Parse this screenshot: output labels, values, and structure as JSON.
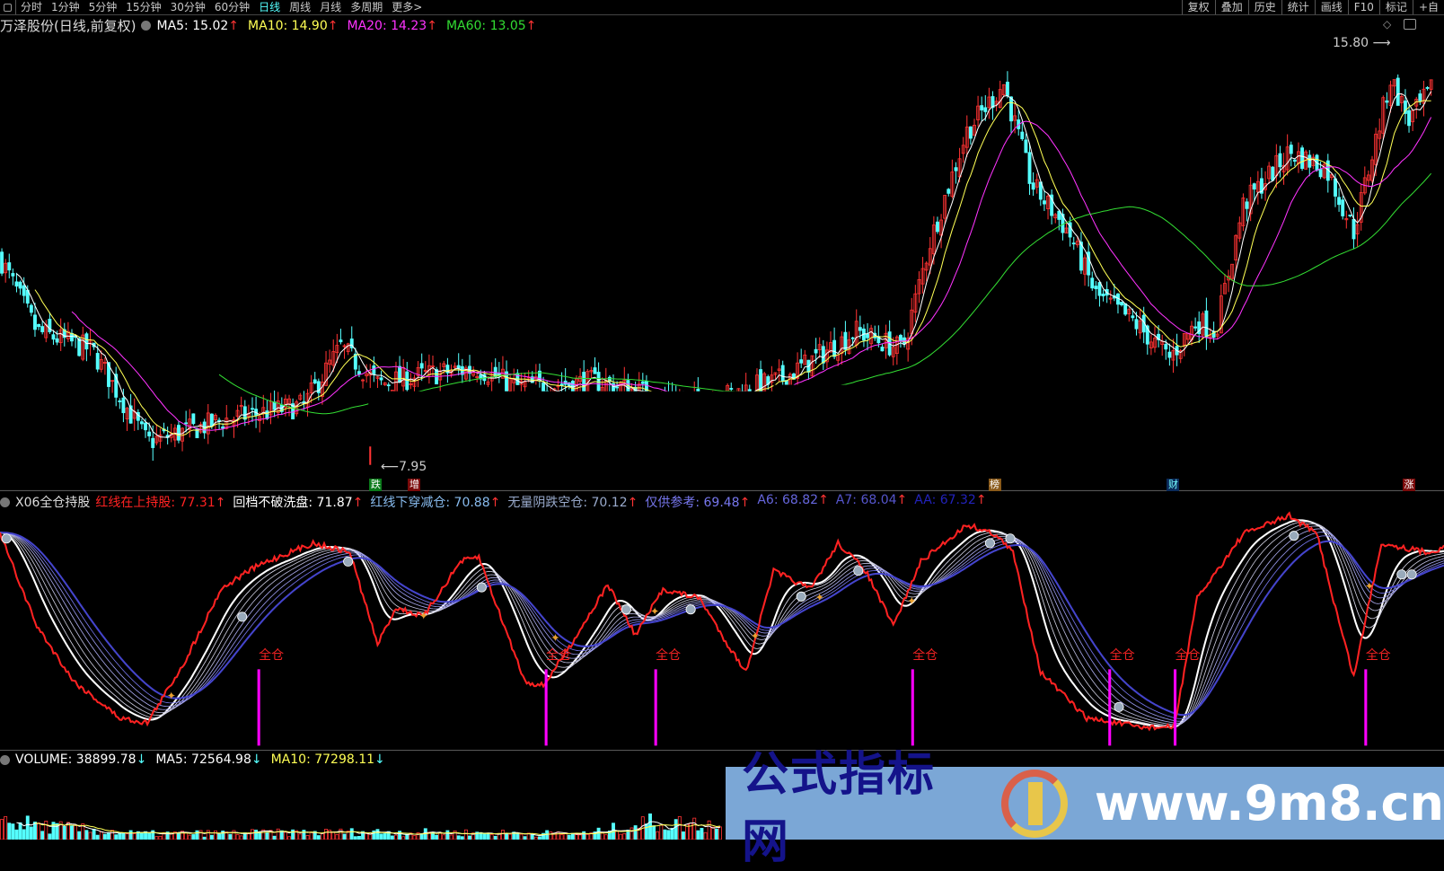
{
  "toolbar": {
    "periods": [
      "分时",
      "1分钟",
      "5分钟",
      "15分钟",
      "30分钟",
      "60分钟",
      "日线",
      "周线",
      "月线",
      "多周期",
      "更多>"
    ],
    "active_period": "日线",
    "right_items": [
      "复权",
      "叠加",
      "历史",
      "统计",
      "画线",
      "F10",
      "标记",
      "+自"
    ]
  },
  "main": {
    "title": "万泽股份(日线,前复权)",
    "ma": [
      {
        "label": "MA5: 15.02",
        "color": "#ffffff"
      },
      {
        "label": "MA10: 14.90",
        "color": "#ffff55"
      },
      {
        "label": "MA20: 14.23",
        "color": "#ff33ff"
      },
      {
        "label": "MA60: 13.05",
        "color": "#33dd33"
      }
    ],
    "arrow_up": "↑",
    "high_label": "15.80",
    "low_label": "7.95",
    "tags": [
      {
        "text": "跌",
        "bg": "#0a7a1a",
        "fg": "#ffffff"
      },
      {
        "text": "增",
        "bg": "#7a0a0a",
        "fg": "#ffffff"
      },
      {
        "text": "榜",
        "bg": "#8a5a1a",
        "fg": "#ffffff"
      },
      {
        "text": "财",
        "bg": "#0a2a5a",
        "fg": "#7ff"
      },
      {
        "text": "涨",
        "bg": "#7a0a0a",
        "fg": "#ffffff"
      }
    ]
  },
  "indicator": {
    "name": "X06全仓持股",
    "items": [
      {
        "label": "红线在上持股: 77.31",
        "color": "#ff2222"
      },
      {
        "label": "回档不破洗盘: 71.87",
        "color": "#ffffff"
      },
      {
        "label": "红线下穿减仓: 70.88",
        "color": "#88bbee"
      },
      {
        "label": "无量阴跌空仓: 70.12",
        "color": "#99aacc"
      },
      {
        "label": "仅供参考: 69.48",
        "color": "#7777ee"
      },
      {
        "label": "A6: 68.82",
        "color": "#6666dd"
      },
      {
        "label": "A7: 68.04",
        "color": "#5555cc"
      },
      {
        "label": "AA: 67.32",
        "color": "#2222bb"
      }
    ],
    "signal_label": "全仓"
  },
  "volume": {
    "items": [
      {
        "label": "VOLUME: 38899.78",
        "color": "#ffffff"
      },
      {
        "label": "MA5: 72564.98",
        "color": "#ffffff"
      },
      {
        "label": "MA10: 77298.11",
        "color": "#ffff55"
      }
    ],
    "arrow_down": "↓"
  },
  "watermark": {
    "cn": "公式指标网",
    "url": "www.9m8.cn"
  },
  "colors": {
    "up": "#ff3333",
    "down": "#55ffff",
    "signal_bar": "#ff00ff",
    "bg": "#000000"
  }
}
